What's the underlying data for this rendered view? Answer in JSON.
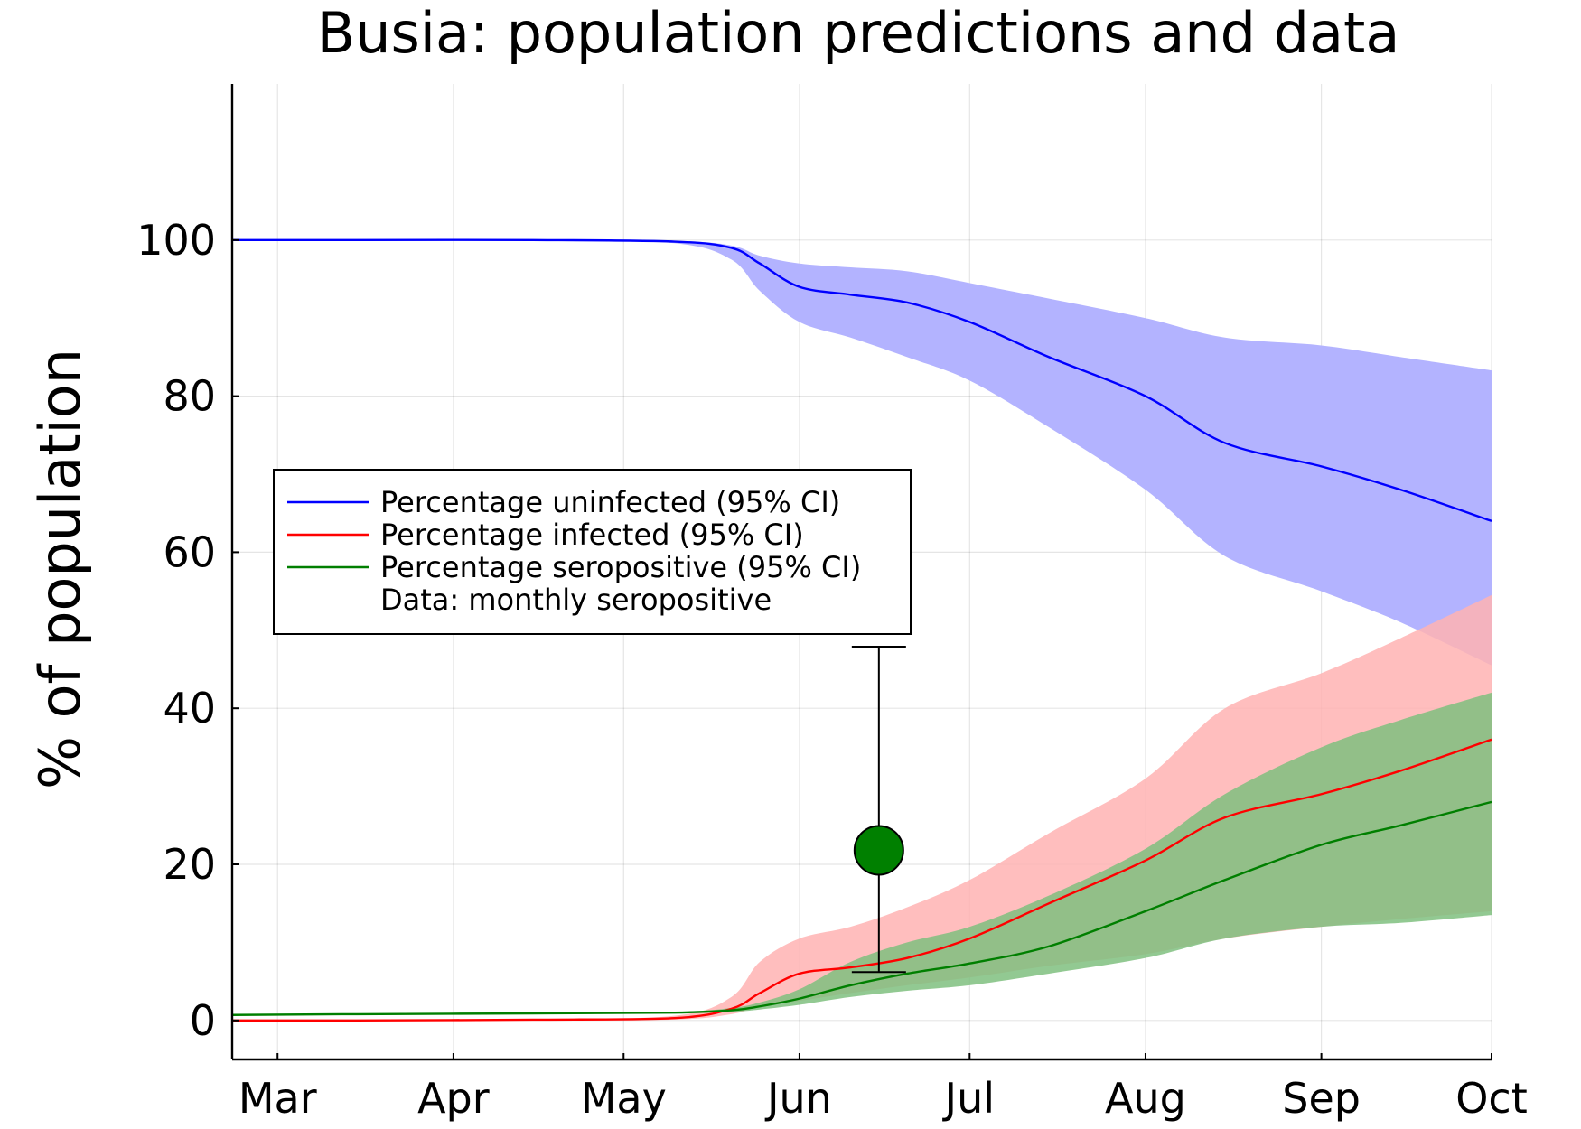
{
  "chart_data": {
    "type": "line",
    "title": "Busia: population predictions and data",
    "xlabel": "",
    "ylabel": "% of population",
    "x_ticks": [
      "Mar",
      "Apr",
      "May",
      "Jun",
      "Jul",
      "Aug",
      "Sep",
      "Oct"
    ],
    "x_range": [
      "2020-02-22",
      "2020-10-01"
    ],
    "ylim": [
      -5,
      120
    ],
    "y_ticks": [
      0,
      20,
      40,
      60,
      80,
      100
    ],
    "grid": true,
    "legend_position": "middle-left",
    "series": [
      {
        "name": "Percentage uninfected (95% CI)",
        "color": "#0000ff",
        "band_color": "#b3b3ff",
        "x": [
          "2020-02-22",
          "2020-03-15",
          "2020-04-15",
          "2020-05-10",
          "2020-05-20",
          "2020-05-25",
          "2020-06-01",
          "2020-06-10",
          "2020-06-20",
          "2020-07-01",
          "2020-07-15",
          "2020-08-01",
          "2020-08-15",
          "2020-09-01",
          "2020-09-15",
          "2020-10-01"
        ],
        "values": [
          100,
          100,
          100,
          99.8,
          99,
          97,
          94,
          93,
          92,
          89.5,
          85,
          80,
          74,
          71,
          68,
          64
        ],
        "lower": [
          100,
          100,
          100,
          99.6,
          97.5,
          93.5,
          89.5,
          87.5,
          85,
          82,
          76,
          68,
          59.5,
          55,
          51,
          45.5
        ],
        "upper": [
          100,
          100,
          100,
          99.9,
          99.3,
          98,
          97,
          96.5,
          96,
          94.5,
          92.5,
          90,
          87.5,
          86.5,
          85,
          83.3
        ]
      },
      {
        "name": "Percentage infected (95% CI)",
        "color": "#ff0000",
        "band_color": "#ffb3b3",
        "x": [
          "2020-02-22",
          "2020-03-15",
          "2020-04-15",
          "2020-05-10",
          "2020-05-20",
          "2020-05-25",
          "2020-06-01",
          "2020-06-10",
          "2020-06-20",
          "2020-07-01",
          "2020-07-15",
          "2020-08-01",
          "2020-08-15",
          "2020-09-01",
          "2020-09-15",
          "2020-10-01"
        ],
        "values": [
          0,
          0,
          0.1,
          0.3,
          1.5,
          3.5,
          6,
          6.8,
          8,
          10.5,
          15,
          20.5,
          26,
          29,
          32,
          36
        ],
        "lower": [
          0,
          0,
          0,
          0.1,
          0.8,
          1.8,
          2.5,
          3.5,
          4.5,
          5.5,
          7,
          8.5,
          10.5,
          12,
          13,
          14
        ],
        "upper": [
          0,
          0,
          0.2,
          0.6,
          3,
          7.5,
          10.5,
          12,
          14.5,
          18,
          24,
          31,
          40,
          44.5,
          49,
          54.5
        ]
      },
      {
        "name": "Percentage seropositive (95% CI)",
        "color": "#007f00",
        "band_color": "#7fbf7f",
        "x": [
          "2020-02-22",
          "2020-03-15",
          "2020-04-15",
          "2020-05-10",
          "2020-05-20",
          "2020-05-25",
          "2020-06-01",
          "2020-06-10",
          "2020-06-20",
          "2020-07-01",
          "2020-07-15",
          "2020-08-01",
          "2020-08-15",
          "2020-09-01",
          "2020-09-15",
          "2020-10-01"
        ],
        "values": [
          0.7,
          0.8,
          0.9,
          1.0,
          1.3,
          1.8,
          2.8,
          4.5,
          6,
          7.3,
          9.5,
          14,
          18,
          22.5,
          25,
          28
        ],
        "lower": [
          0.7,
          0.7,
          0.8,
          0.9,
          1.1,
          1.4,
          2,
          3,
          3.8,
          4.5,
          6,
          8,
          10.5,
          12,
          12.5,
          13.5
        ],
        "upper": [
          0.7,
          0.8,
          0.9,
          1.1,
          1.6,
          2.3,
          4,
          7.5,
          10,
          12,
          16,
          22,
          29,
          35,
          38.5,
          42
        ]
      },
      {
        "name": "Data: monthly seropositive",
        "color": "#008000",
        "type": "scatter",
        "x": [
          "2020-06-15"
        ],
        "values": [
          21.8
        ],
        "error_low": [
          6.2
        ],
        "error_high": [
          47.9
        ]
      }
    ]
  }
}
